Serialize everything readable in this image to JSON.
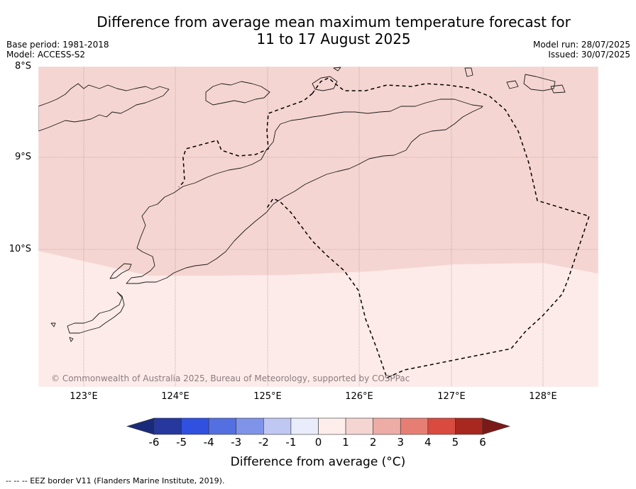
{
  "title_line1": "Difference from average mean maximum temperature forecast for",
  "title_line2": "11 to 17 August 2025",
  "base_period": "Base period: 1981-2018",
  "model": "Model: ACCESS-S2",
  "model_run": "Model run: 28/07/2025",
  "issued": "Issued: 30/07/2025",
  "lat_labels": [
    "8°S",
    "9°S",
    "10°S"
  ],
  "lon_labels": [
    "123°E",
    "124°E",
    "125°E",
    "126°E",
    "127°E",
    "128°E"
  ],
  "copyright": "© Commonwealth of Australia 2025, Bureau of Meteorology, supported by COSPPac",
  "colorbar": {
    "ticks": [
      "-6",
      "-5",
      "-4",
      "-3",
      "-2",
      "-1",
      "0",
      "1",
      "2",
      "3",
      "4",
      "5",
      "6"
    ],
    "colors": [
      "#26379e",
      "#3050e0",
      "#5470e0",
      "#7f93e8",
      "#bfc8f2",
      "#e9ecfa",
      "#fdeeeb",
      "#f5d5d1",
      "#eeaca6",
      "#e77e74",
      "#d94a3f",
      "#a8271f"
    ],
    "under_color": "#1a2a7a",
    "over_color": "#7a1a18",
    "label": "Difference from average (°C)"
  },
  "regions": {
    "north_color": "#f5d5d1",
    "south_color": "#fcebe8",
    "north_category": "1 to 2",
    "south_category": "0 to 1"
  },
  "footnote": "-- -- -- EEZ border V11 (Flanders Marine Institute, 2019)."
}
